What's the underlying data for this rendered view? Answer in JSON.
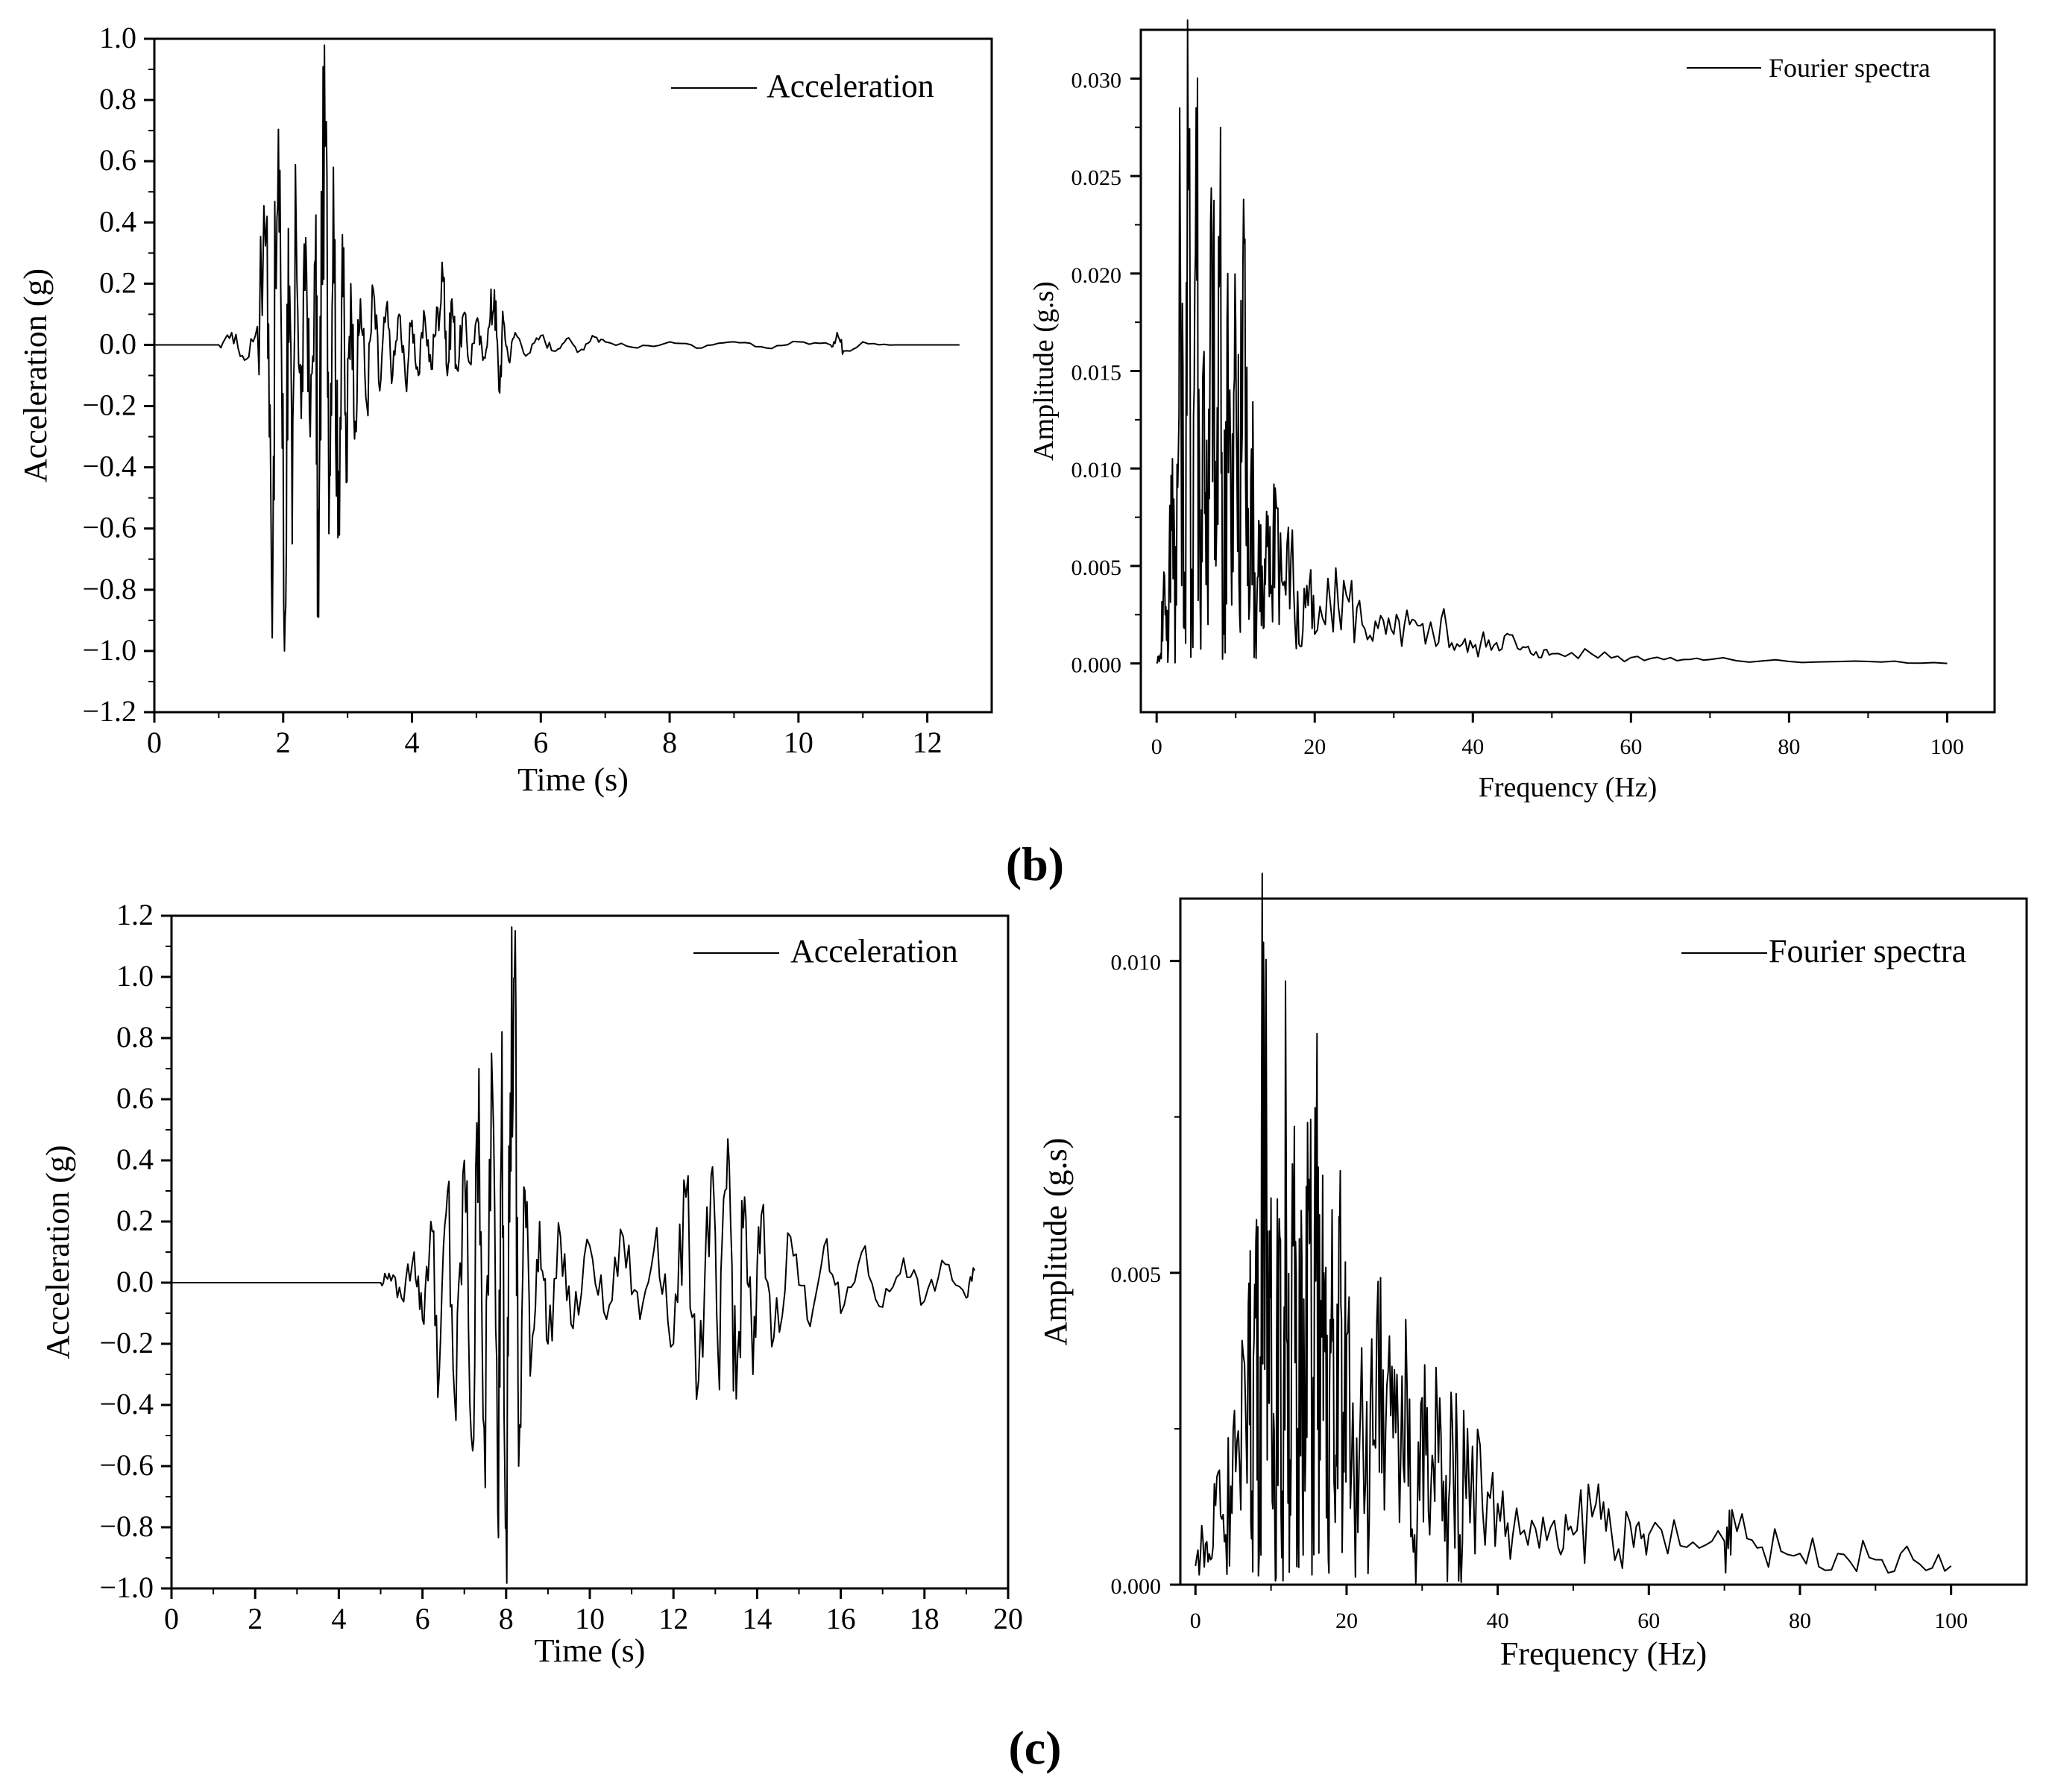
{
  "panel_labels": [
    "(b)",
    "(c)"
  ],
  "chart_data": [
    {
      "type": "line",
      "title": "",
      "xlabel": "Time (s)",
      "ylabel": "Acceleration (g)",
      "xlim": [
        0,
        13
      ],
      "ylim": [
        -1.2,
        1.0
      ],
      "xticks": [
        0,
        2,
        4,
        6,
        8,
        10,
        12
      ],
      "yticks": [
        1.0,
        0.8,
        0.6,
        0.4,
        0.2,
        0.0,
        -0.2,
        -0.4,
        -0.6,
        -0.8,
        -1.0,
        -1.2
      ],
      "xtick_labels": [
        "0",
        "2",
        "4",
        "6",
        "8",
        "10",
        "12"
      ],
      "ytick_labels": [
        "1.0",
        "0.8",
        "0.6",
        "0.4",
        "0.2",
        "0.0",
        "−0.2",
        "−0.4",
        "−0.6",
        "−0.8",
        "−1.0",
        "−1.2"
      ],
      "grid": false,
      "legend_position": "top-right",
      "series": [
        {
          "name": "Acceleration",
          "x": [
            0,
            1.0,
            1.2,
            1.4,
            1.6,
            1.75,
            1.82,
            1.88,
            1.95,
            2.02,
            2.08,
            2.14,
            2.2,
            2.28,
            2.35,
            2.42,
            2.5,
            2.55,
            2.6,
            2.66,
            2.72,
            2.78,
            2.85,
            2.92,
            2.98,
            3.05,
            3.12,
            3.2,
            3.3,
            3.4,
            3.5,
            3.6,
            3.7,
            3.8,
            3.9,
            4.0,
            4.1,
            4.2,
            4.3,
            4.4,
            4.5,
            4.55,
            4.62,
            4.7,
            4.8,
            4.9,
            5.0,
            5.1,
            5.2,
            5.28,
            5.35,
            5.42,
            5.5,
            5.6,
            5.8,
            6.0,
            6.2,
            6.4,
            6.6,
            6.8,
            7.0,
            7.5,
            8.0,
            8.5,
            9.0,
            9.5,
            10.0,
            10.5,
            10.6,
            10.7,
            11.0,
            11.5,
            12.0,
            12.5
          ],
          "y": [
            0.0,
            0.0,
            0.04,
            -0.05,
            0.06,
            0.42,
            -0.77,
            0.21,
            0.57,
            -1.0,
            0.38,
            -0.65,
            0.43,
            -0.24,
            0.35,
            -0.3,
            0.28,
            -0.89,
            0.45,
            0.7,
            -0.42,
            0.58,
            -0.63,
            0.36,
            -0.45,
            0.2,
            -0.25,
            0.15,
            -0.2,
            0.18,
            -0.15,
            0.12,
            -0.1,
            0.1,
            -0.12,
            0.08,
            -0.1,
            0.09,
            -0.08,
            0.12,
            0.22,
            -0.1,
            0.15,
            -0.08,
            0.1,
            -0.06,
            0.08,
            -0.05,
            0.06,
            0.18,
            -0.15,
            0.08,
            -0.05,
            0.04,
            -0.03,
            0.03,
            -0.02,
            0.02,
            -0.02,
            0.03,
            0.01,
            -0.01,
            0.01,
            -0.01,
            0.01,
            -0.01,
            0.01,
            0.0,
            0.04,
            -0.02,
            0.01,
            0.0,
            0.0,
            0.0
          ]
        }
      ]
    },
    {
      "type": "line",
      "title": "",
      "xlabel": "Frequency (Hz)",
      "ylabel": "Amplitude (g.s)",
      "xlim": [
        -2,
        106
      ],
      "ylim": [
        -0.0025,
        0.0325
      ],
      "xticks": [
        0,
        20,
        40,
        60,
        80,
        100
      ],
      "yticks": [
        0.0,
        0.005,
        0.01,
        0.015,
        0.02,
        0.025,
        0.03
      ],
      "xtick_labels": [
        "0",
        "20",
        "40",
        "60",
        "80",
        "100"
      ],
      "ytick_labels": [
        "0.000",
        "0.005",
        "0.010",
        "0.015",
        "0.020",
        "0.025",
        "0.030"
      ],
      "grid": false,
      "legend_position": "top-right",
      "series": [
        {
          "name": "Fourier spectra",
          "x": [
            0,
            0.5,
            1,
            1.5,
            2,
            2.5,
            3,
            3.5,
            4,
            4.5,
            5,
            5.5,
            6,
            6.5,
            7,
            7.5,
            8,
            8.5,
            9,
            9.5,
            10,
            10.5,
            11,
            11.5,
            12,
            12.5,
            13,
            13.5,
            14,
            14.5,
            15,
            16,
            17,
            18,
            19,
            20,
            22,
            24,
            26,
            28,
            30,
            32,
            34,
            36,
            38,
            40,
            42,
            44,
            46,
            48,
            50,
            55,
            60,
            65,
            70,
            80,
            90,
            100
          ],
          "y": [
            0.0,
            0.0005,
            0.0045,
            0.001,
            0.0105,
            0.003,
            0.0208,
            0.0018,
            0.025,
            0.004,
            0.0285,
            0.0035,
            0.016,
            0.002,
            0.022,
            0.005,
            0.0205,
            0.0015,
            0.02,
            0.003,
            0.0175,
            0.0025,
            0.0238,
            0.004,
            0.011,
            0.002,
            0.007,
            0.0018,
            0.006,
            0.004,
            0.009,
            0.004,
            0.0055,
            0.001,
            0.004,
            0.0015,
            0.003,
            0.0035,
            0.002,
            0.0018,
            0.0015,
            0.002,
            0.001,
            0.0023,
            0.001,
            0.0008,
            0.0012,
            0.0014,
            0.0007,
            0.0006,
            0.0005,
            0.0005,
            0.0003,
            0.0003,
            0.0002,
            0.0001,
            0.0001,
            0.0
          ]
        }
      ]
    },
    {
      "type": "line",
      "title": "",
      "xlabel": "Time (s)",
      "ylabel": "Acceleration (g)",
      "xlim": [
        0,
        20
      ],
      "ylim": [
        -1.0,
        1.2
      ],
      "xticks": [
        0,
        2,
        4,
        6,
        8,
        10,
        12,
        14,
        16,
        18,
        20
      ],
      "yticks": [
        1.2,
        1.0,
        0.8,
        0.6,
        0.4,
        0.2,
        0.0,
        -0.2,
        -0.4,
        -0.6,
        -0.8,
        -1.0
      ],
      "xtick_labels": [
        "0",
        "2",
        "4",
        "6",
        "8",
        "10",
        "12",
        "14",
        "16",
        "18",
        "20"
      ],
      "ytick_labels": [
        "1.2",
        "1.0",
        "0.8",
        "0.6",
        "0.4",
        "0.2",
        "0.0",
        "−0.2",
        "−0.4",
        "−0.6",
        "−0.8",
        "−1.0"
      ],
      "grid": false,
      "legend_position": "top-right",
      "series": [
        {
          "name": "Acceleration",
          "x": [
            0,
            5.0,
            5.2,
            5.5,
            5.8,
            6.0,
            6.2,
            6.4,
            6.6,
            6.8,
            7.0,
            7.2,
            7.35,
            7.5,
            7.65,
            7.8,
            7.9,
            8.0,
            8.1,
            8.2,
            8.3,
            8.45,
            8.6,
            8.8,
            9.0,
            9.3,
            9.6,
            10.0,
            10.4,
            10.8,
            11.2,
            11.6,
            12.0,
            12.3,
            12.6,
            12.9,
            13.1,
            13.3,
            13.5,
            13.7,
            13.9,
            14.1,
            14.4,
            14.8,
            15.2,
            15.6,
            16.0,
            16.5,
            17.0,
            17.5,
            18.0,
            18.5,
            19.0,
            19.2
          ],
          "y": [
            0.0,
            0.0,
            0.03,
            -0.05,
            0.1,
            -0.12,
            0.2,
            -0.3,
            0.3,
            -0.45,
            0.4,
            -0.55,
            0.7,
            -0.67,
            0.75,
            -0.75,
            0.82,
            -0.8,
            0.62,
            1.0,
            -0.6,
            0.3,
            -0.25,
            0.2,
            -0.2,
            0.15,
            -0.15,
            0.12,
            -0.12,
            0.15,
            -0.12,
            0.18,
            -0.2,
            0.28,
            -0.32,
            0.35,
            -0.35,
            0.47,
            -0.38,
            0.28,
            -0.3,
            0.22,
            -0.18,
            0.15,
            -0.12,
            0.12,
            -0.1,
            0.1,
            -0.08,
            0.08,
            -0.06,
            0.06,
            -0.05,
            0.04
          ]
        }
      ]
    },
    {
      "type": "line",
      "title": "",
      "xlabel": "Frequency (Hz)",
      "ylabel": "Amplitude (g.s)",
      "xlim": [
        -2,
        110
      ],
      "ylim": [
        0.0,
        0.011
      ],
      "xticks": [
        0,
        20,
        40,
        60,
        80,
        100
      ],
      "yticks": [
        0.0,
        0.005,
        0.01
      ],
      "xtick_labels": [
        "0",
        "20",
        "40",
        "60",
        "80",
        "100"
      ],
      "ytick_labels": [
        "0.000",
        "0.005",
        "0.010"
      ],
      "grid": false,
      "legend_position": "top-right",
      "series": [
        {
          "name": "Fourier spectra",
          "x": [
            0,
            1,
            2,
            3,
            4,
            5,
            6,
            7,
            7.5,
            8,
            8.5,
            9,
            9.5,
            10,
            10.5,
            11,
            11.5,
            12,
            12.5,
            13,
            13.5,
            14,
            14.5,
            15,
            15.5,
            16,
            16.5,
            17,
            17.5,
            18,
            18.5,
            19,
            19.5,
            20,
            21,
            22,
            23,
            24,
            25,
            26,
            27,
            28,
            29,
            30,
            31,
            32,
            33,
            34,
            35,
            36,
            38,
            40,
            42,
            45,
            48,
            50,
            53,
            55,
            58,
            60,
            65,
            70,
            71,
            75,
            80,
            85,
            90,
            95,
            100
          ],
          "y": [
            0.0003,
            0.0007,
            0.0004,
            0.0018,
            0.0008,
            0.0025,
            0.0012,
            0.0045,
            0.0015,
            0.0055,
            0.0008,
            0.0103,
            0.002,
            0.0062,
            0.001,
            0.005,
            0.0015,
            0.007,
            0.002,
            0.0055,
            0.001,
            0.006,
            0.0015,
            0.0065,
            0.002,
            0.0068,
            0.002,
            0.005,
            0.0012,
            0.0045,
            0.001,
            0.0059,
            0.0015,
            0.004,
            0.0015,
            0.0038,
            0.001,
            0.0042,
            0.0012,
            0.0035,
            0.001,
            0.0032,
            0.0008,
            0.003,
            0.0008,
            0.0028,
            0.0007,
            0.0026,
            0.0008,
            0.0025,
            0.0012,
            0.0013,
            0.0008,
            0.0009,
            0.0006,
            0.0008,
            0.0013,
            0.0009,
            0.0006,
            0.0008,
            0.0006,
            0.0007,
            0.0012,
            0.0006,
            0.0005,
            0.0005,
            0.0004,
            0.0004,
            0.0003
          ]
        }
      ]
    }
  ]
}
